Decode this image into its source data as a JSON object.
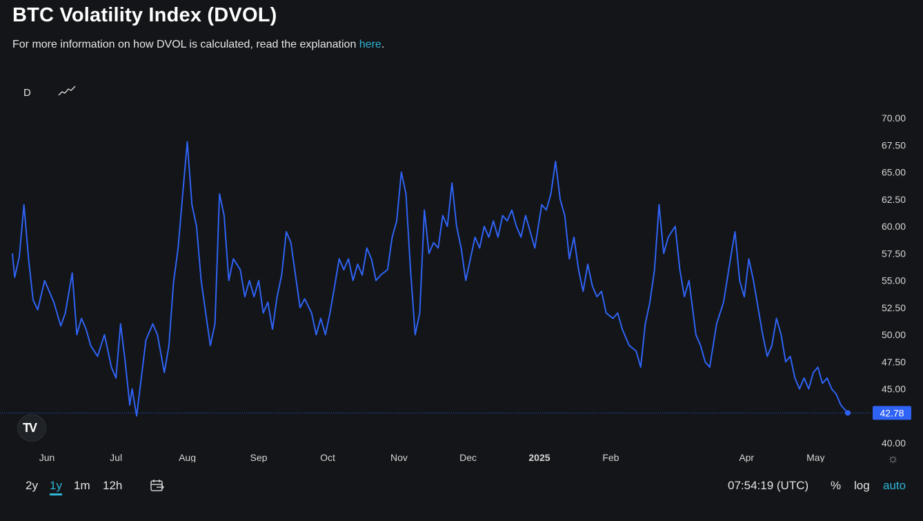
{
  "header": {
    "title": "BTC Volatility Index (DVOL)",
    "subtitle_text": "For more information on how DVOL is calculated, read the explanation ",
    "subtitle_link": "here",
    "subtitle_end": "."
  },
  "toolbar": {
    "interval": "D",
    "chart_type_icon": "line-chart-icon"
  },
  "ranges": [
    "2y",
    "1y",
    "1m",
    "12h"
  ],
  "active_range": "1y",
  "footer": {
    "clock": "07:54:19 (UTC)",
    "percent": "%",
    "log": "log",
    "auto": "auto"
  },
  "colors": {
    "line": "#2f63f5",
    "accent": "#2fb5d8",
    "background": "#131518"
  },
  "chart_data": {
    "type": "line",
    "title": "BTC Volatility Index (DVOL)",
    "x_start": "2024-05-17",
    "x_end": "2025-05-15",
    "x_ticks": [
      {
        "label": "Jun",
        "date": "2024-06-01"
      },
      {
        "label": "Jul",
        "date": "2024-07-01"
      },
      {
        "label": "Aug",
        "date": "2024-08-01"
      },
      {
        "label": "Sep",
        "date": "2024-09-01"
      },
      {
        "label": "Oct",
        "date": "2024-10-01"
      },
      {
        "label": "Nov",
        "date": "2024-11-01"
      },
      {
        "label": "Dec",
        "date": "2024-12-01"
      },
      {
        "label": "2025",
        "date": "2025-01-01",
        "bold": true
      },
      {
        "label": "Feb",
        "date": "2025-02-01"
      },
      {
        "label": "Apr",
        "date": "2025-04-01"
      },
      {
        "label": "May",
        "date": "2025-05-01"
      }
    ],
    "y_ticks": [
      "40.00",
      "42.50",
      "45.00",
      "47.50",
      "50.00",
      "52.50",
      "55.00",
      "57.50",
      "60.00",
      "62.50",
      "65.00",
      "67.50",
      "70.00"
    ],
    "ylim": [
      40,
      70
    ],
    "last_value": "42.78",
    "series": [
      {
        "points": [
          [
            "2024-05-17",
            57.5
          ],
          [
            "2024-05-18",
            55.3
          ],
          [
            "2024-05-20",
            57.2
          ],
          [
            "2024-05-22",
            62.0
          ],
          [
            "2024-05-24",
            57.0
          ],
          [
            "2024-05-26",
            53.2
          ],
          [
            "2024-05-28",
            52.3
          ],
          [
            "2024-05-31",
            55.0
          ],
          [
            "2024-06-02",
            54.0
          ],
          [
            "2024-06-04",
            53.0
          ],
          [
            "2024-06-07",
            50.8
          ],
          [
            "2024-06-09",
            52.0
          ],
          [
            "2024-06-12",
            55.7
          ],
          [
            "2024-06-14",
            50.0
          ],
          [
            "2024-06-16",
            51.5
          ],
          [
            "2024-06-18",
            50.5
          ],
          [
            "2024-06-20",
            49.0
          ],
          [
            "2024-06-23",
            48.0
          ],
          [
            "2024-06-26",
            50.0
          ],
          [
            "2024-06-29",
            47.0
          ],
          [
            "2024-07-01",
            46.0
          ],
          [
            "2024-07-03",
            51.0
          ],
          [
            "2024-07-05",
            47.5
          ],
          [
            "2024-07-07",
            43.5
          ],
          [
            "2024-07-08",
            45.0
          ],
          [
            "2024-07-10",
            42.5
          ],
          [
            "2024-07-12",
            46.0
          ],
          [
            "2024-07-14",
            49.5
          ],
          [
            "2024-07-17",
            51.0
          ],
          [
            "2024-07-19",
            50.0
          ],
          [
            "2024-07-22",
            46.5
          ],
          [
            "2024-07-24",
            49.0
          ],
          [
            "2024-07-26",
            54.8
          ],
          [
            "2024-07-28",
            58.0
          ],
          [
            "2024-07-30",
            63.0
          ],
          [
            "2024-08-01",
            67.8
          ],
          [
            "2024-08-03",
            62.0
          ],
          [
            "2024-08-05",
            60.0
          ],
          [
            "2024-08-07",
            55.0
          ],
          [
            "2024-08-09",
            52.0
          ],
          [
            "2024-08-11",
            49.0
          ],
          [
            "2024-08-13",
            51.0
          ],
          [
            "2024-08-15",
            63.0
          ],
          [
            "2024-08-17",
            61.0
          ],
          [
            "2024-08-19",
            55.0
          ],
          [
            "2024-08-21",
            57.0
          ],
          [
            "2024-08-24",
            56.0
          ],
          [
            "2024-08-26",
            53.5
          ],
          [
            "2024-08-28",
            55.0
          ],
          [
            "2024-08-30",
            53.5
          ],
          [
            "2024-09-01",
            55.0
          ],
          [
            "2024-09-03",
            52.0
          ],
          [
            "2024-09-05",
            53.0
          ],
          [
            "2024-09-07",
            50.5
          ],
          [
            "2024-09-09",
            53.5
          ],
          [
            "2024-09-11",
            55.5
          ],
          [
            "2024-09-13",
            59.5
          ],
          [
            "2024-09-15",
            58.5
          ],
          [
            "2024-09-17",
            55.5
          ],
          [
            "2024-09-19",
            52.5
          ],
          [
            "2024-09-21",
            53.3
          ],
          [
            "2024-09-24",
            52.0
          ],
          [
            "2024-09-26",
            50.0
          ],
          [
            "2024-09-28",
            51.5
          ],
          [
            "2024-09-30",
            50.0
          ],
          [
            "2024-10-02",
            52.0
          ],
          [
            "2024-10-04",
            54.5
          ],
          [
            "2024-10-06",
            57.0
          ],
          [
            "2024-10-08",
            56.0
          ],
          [
            "2024-10-10",
            57.0
          ],
          [
            "2024-10-12",
            55.0
          ],
          [
            "2024-10-14",
            56.5
          ],
          [
            "2024-10-16",
            55.5
          ],
          [
            "2024-10-18",
            58.0
          ],
          [
            "2024-10-20",
            57.0
          ],
          [
            "2024-10-22",
            55.0
          ],
          [
            "2024-10-24",
            55.5
          ],
          [
            "2024-10-27",
            56.0
          ],
          [
            "2024-10-29",
            59.0
          ],
          [
            "2024-10-31",
            60.5
          ],
          [
            "2024-11-02",
            65.0
          ],
          [
            "2024-11-04",
            63.0
          ],
          [
            "2024-11-06",
            56.0
          ],
          [
            "2024-11-08",
            50.0
          ],
          [
            "2024-11-10",
            52.0
          ],
          [
            "2024-11-12",
            61.5
          ],
          [
            "2024-11-14",
            57.5
          ],
          [
            "2024-11-16",
            58.5
          ],
          [
            "2024-11-18",
            58.0
          ],
          [
            "2024-11-20",
            61.0
          ],
          [
            "2024-11-22",
            60.0
          ],
          [
            "2024-11-24",
            64.0
          ],
          [
            "2024-11-26",
            60.0
          ],
          [
            "2024-11-28",
            58.0
          ],
          [
            "2024-11-30",
            55.0
          ],
          [
            "2024-12-02",
            57.0
          ],
          [
            "2024-12-04",
            59.0
          ],
          [
            "2024-12-06",
            58.0
          ],
          [
            "2024-12-08",
            60.0
          ],
          [
            "2024-12-10",
            59.0
          ],
          [
            "2024-12-12",
            60.5
          ],
          [
            "2024-12-14",
            59.0
          ],
          [
            "2024-12-16",
            61.0
          ],
          [
            "2024-12-18",
            60.5
          ],
          [
            "2024-12-20",
            61.5
          ],
          [
            "2024-12-22",
            60.0
          ],
          [
            "2024-12-24",
            59.0
          ],
          [
            "2024-12-26",
            61.0
          ],
          [
            "2024-12-28",
            59.5
          ],
          [
            "2024-12-30",
            58.0
          ],
          [
            "2025-01-02",
            62.0
          ],
          [
            "2025-01-04",
            61.5
          ],
          [
            "2025-01-06",
            63.0
          ],
          [
            "2025-01-08",
            66.0
          ],
          [
            "2025-01-10",
            62.5
          ],
          [
            "2025-01-12",
            61.0
          ],
          [
            "2025-01-14",
            57.0
          ],
          [
            "2025-01-16",
            59.0
          ],
          [
            "2025-01-18",
            56.0
          ],
          [
            "2025-01-20",
            54.0
          ],
          [
            "2025-01-22",
            56.5
          ],
          [
            "2025-01-24",
            54.5
          ],
          [
            "2025-01-26",
            53.5
          ],
          [
            "2025-01-28",
            54.0
          ],
          [
            "2025-01-30",
            52.0
          ],
          [
            "2025-02-02",
            51.5
          ],
          [
            "2025-02-04",
            52.0
          ],
          [
            "2025-02-06",
            50.5
          ],
          [
            "2025-02-09",
            49.0
          ],
          [
            "2025-02-12",
            48.5
          ],
          [
            "2025-02-14",
            47.0
          ],
          [
            "2025-02-16",
            51.0
          ],
          [
            "2025-02-18",
            53.0
          ],
          [
            "2025-02-20",
            56.0
          ],
          [
            "2025-02-22",
            62.0
          ],
          [
            "2025-02-24",
            57.5
          ],
          [
            "2025-02-26",
            59.0
          ],
          [
            "2025-03-01",
            60.0
          ],
          [
            "2025-03-03",
            56.0
          ],
          [
            "2025-03-05",
            53.5
          ],
          [
            "2025-03-07",
            55.0
          ],
          [
            "2025-03-10",
            50.0
          ],
          [
            "2025-03-12",
            49.0
          ],
          [
            "2025-03-14",
            47.5
          ],
          [
            "2025-03-16",
            47.0
          ],
          [
            "2025-03-19",
            51.0
          ],
          [
            "2025-03-22",
            53.0
          ],
          [
            "2025-03-25",
            57.0
          ],
          [
            "2025-03-27",
            59.5
          ],
          [
            "2025-03-29",
            55.0
          ],
          [
            "2025-03-31",
            53.5
          ],
          [
            "2025-04-02",
            57.0
          ],
          [
            "2025-04-04",
            55.0
          ],
          [
            "2025-04-06",
            52.5
          ],
          [
            "2025-04-08",
            50.0
          ],
          [
            "2025-04-10",
            48.0
          ],
          [
            "2025-04-12",
            49.0
          ],
          [
            "2025-04-14",
            51.5
          ],
          [
            "2025-04-16",
            50.0
          ],
          [
            "2025-04-18",
            47.5
          ],
          [
            "2025-04-20",
            48.0
          ],
          [
            "2025-04-22",
            46.0
          ],
          [
            "2025-04-24",
            45.0
          ],
          [
            "2025-04-26",
            46.0
          ],
          [
            "2025-04-28",
            45.0
          ],
          [
            "2025-04-30",
            46.5
          ],
          [
            "2025-05-02",
            47.0
          ],
          [
            "2025-05-04",
            45.5
          ],
          [
            "2025-05-06",
            46.0
          ],
          [
            "2025-05-08",
            45.0
          ],
          [
            "2025-05-10",
            44.5
          ],
          [
            "2025-05-12",
            43.5
          ],
          [
            "2025-05-15",
            42.78
          ]
        ]
      }
    ]
  }
}
